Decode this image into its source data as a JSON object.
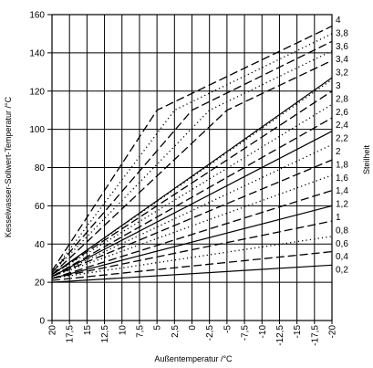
{
  "chart_data": {
    "type": "line",
    "title": "",
    "xlabel": "Außentemperatur /°C",
    "ylabel": "Kesselwasser-Sollwert-Temperatur /°C",
    "y2label": "Steilheit",
    "x_ticks": [
      20,
      17.5,
      15,
      12.5,
      10,
      7.5,
      5,
      2.5,
      0,
      -2.5,
      -5,
      -7.5,
      -10,
      -12.5,
      -15,
      -17.5,
      -20
    ],
    "x_tick_labels": [
      "20",
      "17,5",
      "15",
      "12,5",
      "10",
      "7,5",
      "5",
      "2,5",
      "0",
      "-2,5",
      "-5",
      "-7,5",
      "-10",
      "-12,5",
      "-15",
      "-17,5",
      "-20"
    ],
    "xlim": [
      20,
      -20
    ],
    "ylim": [
      0,
      160
    ],
    "y_ticks": [
      0,
      20,
      40,
      60,
      80,
      100,
      120,
      140,
      160
    ],
    "grid": true,
    "series": [
      {
        "name": "0,2",
        "style": "solid",
        "values": [
          [
            20,
            20
          ],
          [
            -20,
            29
          ]
        ]
      },
      {
        "name": "0,4",
        "style": "dashed",
        "values": [
          [
            20,
            21
          ],
          [
            -20,
            36
          ]
        ]
      },
      {
        "name": "0,6",
        "style": "dotted",
        "values": [
          [
            20,
            22
          ],
          [
            -20,
            44
          ]
        ]
      },
      {
        "name": "0,8",
        "style": "dashed",
        "values": [
          [
            20,
            22
          ],
          [
            -20,
            52
          ]
        ]
      },
      {
        "name": "1",
        "style": "solid",
        "values": [
          [
            20,
            22
          ],
          [
            -20,
            60
          ]
        ]
      },
      {
        "name": "1,2",
        "style": "dashed",
        "values": [
          [
            20,
            22
          ],
          [
            -20,
            68
          ]
        ]
      },
      {
        "name": "1,4",
        "style": "dotted",
        "values": [
          [
            20,
            23
          ],
          [
            -20,
            76
          ]
        ]
      },
      {
        "name": "1,6",
        "style": "dashed",
        "values": [
          [
            20,
            23
          ],
          [
            -20,
            84
          ]
        ]
      },
      {
        "name": "1,8",
        "style": "dotted",
        "values": [
          [
            20,
            23
          ],
          [
            -20,
            92
          ]
        ]
      },
      {
        "name": "2",
        "style": "solid",
        "values": [
          [
            20,
            23
          ],
          [
            -20,
            99
          ]
        ]
      },
      {
        "name": "2,2",
        "style": "dashed",
        "values": [
          [
            20,
            23
          ],
          [
            -20,
            106
          ]
        ]
      },
      {
        "name": "2,4",
        "style": "dotted",
        "values": [
          [
            20,
            24
          ],
          [
            -20,
            113
          ]
        ]
      },
      {
        "name": "2,6",
        "style": "dashed",
        "values": [
          [
            20,
            24
          ],
          [
            -20,
            120
          ]
        ]
      },
      {
        "name": "2,8",
        "style": "dotted",
        "values": [
          [
            20,
            24
          ],
          [
            -20,
            126
          ]
        ]
      },
      {
        "name": "3",
        "style": "solid",
        "values": [
          [
            20,
            24
          ],
          [
            -20,
            127
          ]
        ]
      },
      {
        "name": "3,2",
        "style": "dashed",
        "values": [
          [
            20,
            24
          ],
          [
            -5,
            110
          ],
          [
            -20,
            136
          ]
        ]
      },
      {
        "name": "3,4",
        "style": "dotted",
        "values": [
          [
            20,
            25
          ],
          [
            -2.5,
            110
          ],
          [
            -20,
            141
          ]
        ]
      },
      {
        "name": "3,6",
        "style": "dashed",
        "values": [
          [
            20,
            25
          ],
          [
            0,
            110
          ],
          [
            -20,
            146
          ]
        ]
      },
      {
        "name": "3,8",
        "style": "dotted",
        "values": [
          [
            20,
            25
          ],
          [
            2.5,
            110
          ],
          [
            -20,
            150
          ]
        ]
      },
      {
        "name": "4",
        "style": "dashed",
        "values": [
          [
            20,
            26
          ],
          [
            5,
            110
          ],
          [
            -20,
            154
          ]
        ]
      }
    ]
  }
}
